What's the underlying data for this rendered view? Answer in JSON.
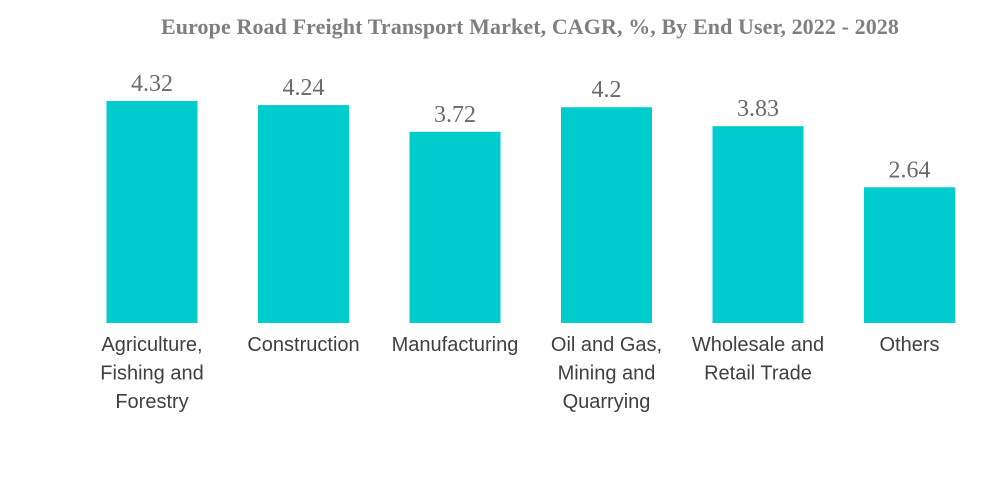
{
  "chart_data": {
    "type": "bar",
    "title": "Europe Road Freight Transport Market, CAGR, %, By End User, 2022 - 2028",
    "xlabel": "",
    "ylabel": "",
    "categories": [
      "Agriculture, Fishing and Forestry",
      "Construction",
      "Manufacturing",
      "Oil and Gas, Mining and Quarrying",
      "Wholesale and Retail Trade",
      "Others"
    ],
    "category_lines": [
      [
        "Agriculture,",
        "Fishing and",
        "Forestry"
      ],
      [
        "Construction"
      ],
      [
        "Manufacturing"
      ],
      [
        "Oil and Gas,",
        "Mining and",
        "Quarrying"
      ],
      [
        "Wholesale and",
        "Retail Trade"
      ],
      [
        "Others"
      ]
    ],
    "values": [
      4.32,
      4.24,
      3.72,
      4.2,
      3.83,
      2.64
    ],
    "value_labels": [
      "4.32",
      "4.24",
      "3.72",
      "4.2",
      "3.83",
      "2.64"
    ],
    "ylim": [
      0,
      4.32
    ],
    "grid": false,
    "legend": "none",
    "bar_color": "#00ccce"
  }
}
